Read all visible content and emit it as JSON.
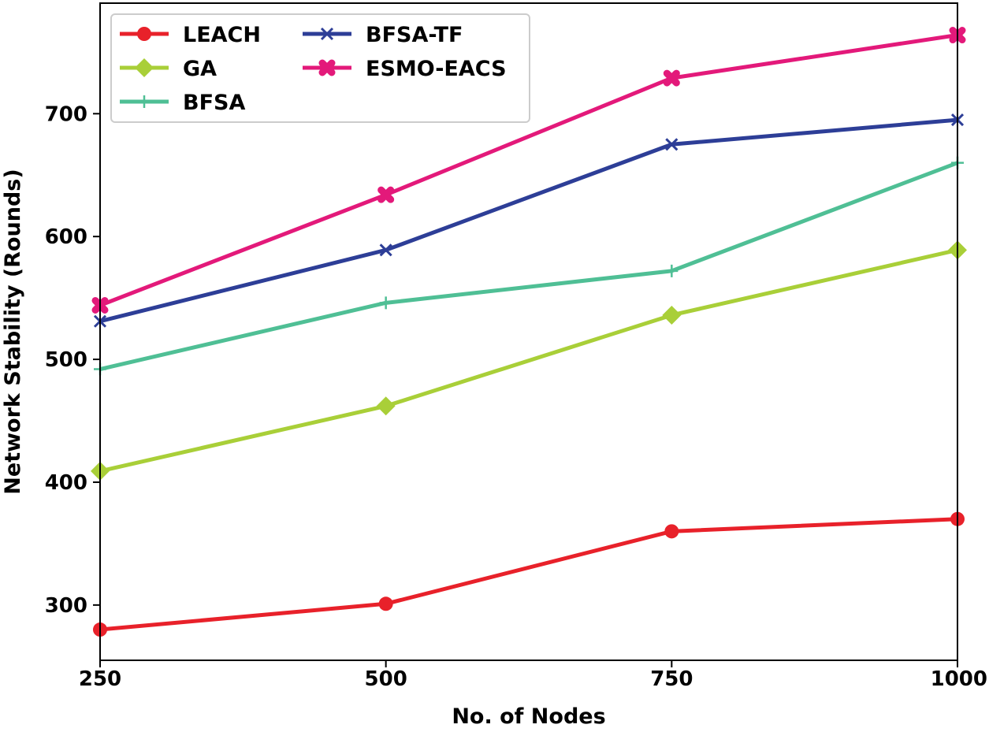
{
  "chart_data": {
    "type": "line",
    "title": "",
    "xlabel": "No. of Nodes",
    "ylabel": "Network Stability (Rounds)",
    "x": [
      250,
      500,
      750,
      1000
    ],
    "x_tick_labels": [
      "250",
      "500",
      "750",
      "1000"
    ],
    "y_ticks": [
      300,
      400,
      500,
      600,
      700
    ],
    "y_tick_labels": [
      "300",
      "400",
      "500",
      "600",
      "700"
    ],
    "xlim": [
      250,
      1000
    ],
    "ylim": [
      255,
      790
    ],
    "grid": false,
    "legend_position": "top-left",
    "series": [
      {
        "name": "LEACH",
        "color": "#e8212a",
        "marker": "circle",
        "values": [
          280,
          301,
          360,
          370
        ]
      },
      {
        "name": "GA",
        "color": "#a9cf38",
        "marker": "diamond",
        "values": [
          409,
          462,
          536,
          589
        ]
      },
      {
        "name": "BFSA",
        "color": "#4fbf95",
        "marker": "plus",
        "values": [
          492,
          546,
          572,
          660
        ]
      },
      {
        "name": "BFSA-TF",
        "color": "#2d3e97",
        "marker": "x",
        "values": [
          531,
          589,
          675,
          695
        ]
      },
      {
        "name": "ESMO-EACS",
        "color": "#e3197a",
        "marker": "xfilled",
        "values": [
          544,
          634,
          729,
          764
        ]
      }
    ]
  }
}
